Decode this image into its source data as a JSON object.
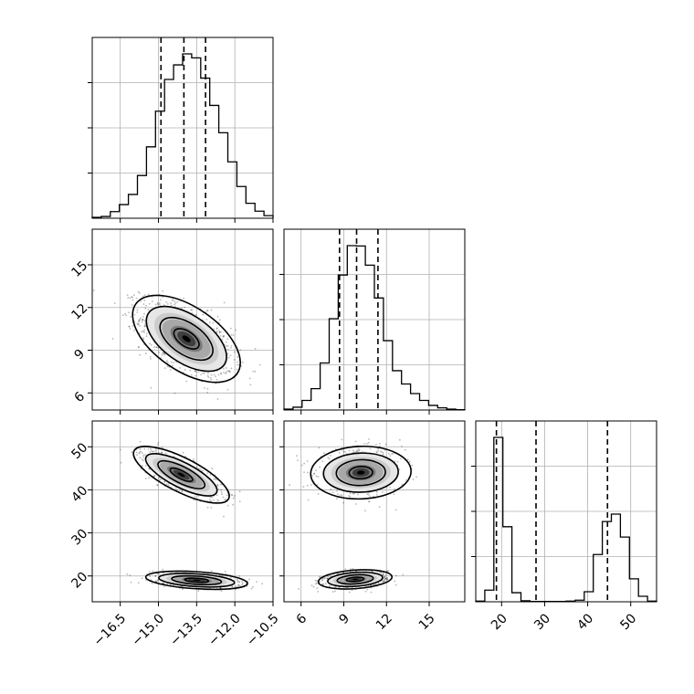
{
  "chart_data": {
    "type": "corner",
    "parameters": [
      {
        "range": [
          -17.6,
          -10.5
        ],
        "ticks": [
          -16.5,
          -15.0,
          -13.5,
          -12.0,
          -10.5
        ],
        "tick_labels": [
          "−16.5",
          "−15.0",
          "−13.5",
          "−12.0",
          "−10.5"
        ],
        "quantiles": [
          -14.9,
          -14.0,
          -13.15
        ],
        "histogram": {
          "edges_start": -17.6,
          "bin_width": 0.355,
          "counts": [
            0.2,
            0.4,
            1.5,
            3.1,
            5.4,
            9.7,
            16.2,
            24.3,
            31.5,
            34.8,
            37.3,
            36.4,
            31.8,
            25.6,
            19.4,
            12.8,
            7.2,
            3.4,
            1.6,
            0.6
          ]
        }
      },
      {
        "range": [
          4.8,
          17.5
        ],
        "ticks": [
          6,
          9,
          12,
          15
        ],
        "tick_labels": [
          "6",
          "9",
          "12",
          "15"
        ],
        "quantiles": [
          8.7,
          9.9,
          11.4
        ],
        "histogram": {
          "edges_start": 4.8,
          "bin_width": 0.635,
          "counts": [
            0.3,
            0.9,
            3.1,
            6.9,
            15.2,
            29.5,
            43.6,
            53.1,
            53.0,
            46.8,
            36.2,
            22.4,
            12.7,
            8.4,
            5.3,
            3.1,
            1.5,
            0.7,
            0.3,
            0.1
          ]
        }
      },
      {
        "range": [
          14,
          56
        ],
        "ticks": [
          20,
          30,
          40,
          50
        ],
        "tick_labels": [
          "20",
          "30",
          "40",
          "50"
        ],
        "quantiles": [
          18.8,
          28.0,
          44.6
        ],
        "histogram": {
          "edges_start": 14,
          "bin_width": 2.1,
          "counts": [
            0.2,
            3.6,
            50.8,
            23.2,
            2.8,
            0.3,
            0.1,
            0.1,
            0.1,
            0.1,
            0.2,
            0.5,
            3.1,
            14.6,
            24.8,
            27.1,
            20.0,
            7.1,
            1.7,
            0.2
          ]
        }
      }
    ],
    "pairs": [
      {
        "x_param": 0,
        "y_param": 1,
        "components": [
          {
            "weight": 1.0,
            "mean": [
              -13.9,
              9.8
            ],
            "sd": [
              0.9,
              1.3
            ],
            "rho": -0.55
          }
        ]
      },
      {
        "x_param": 0,
        "y_param": 2,
        "components": [
          {
            "weight": 0.5,
            "mean": [
              -14.1,
              43.5
            ],
            "sd": [
              0.8,
              2.8
            ],
            "rho": -0.75
          },
          {
            "weight": 0.5,
            "mean": [
              -13.5,
              19.0
            ],
            "sd": [
              0.85,
              0.9
            ],
            "rho": -0.35
          }
        ]
      },
      {
        "x_param": 1,
        "y_param": 2,
        "components": [
          {
            "weight": 0.5,
            "mean": [
              10.2,
              44.0
            ],
            "sd": [
              1.5,
              2.6
            ],
            "rho": 0.05
          },
          {
            "weight": 0.5,
            "mean": [
              9.8,
              19.2
            ],
            "sd": [
              1.1,
              0.95
            ],
            "rho": 0.25
          }
        ]
      }
    ],
    "grid": true,
    "x_axis_labels_rotation": 45,
    "colors": {
      "frame": "#000000",
      "grid": "#b0b0b0",
      "density": "#000000"
    }
  }
}
